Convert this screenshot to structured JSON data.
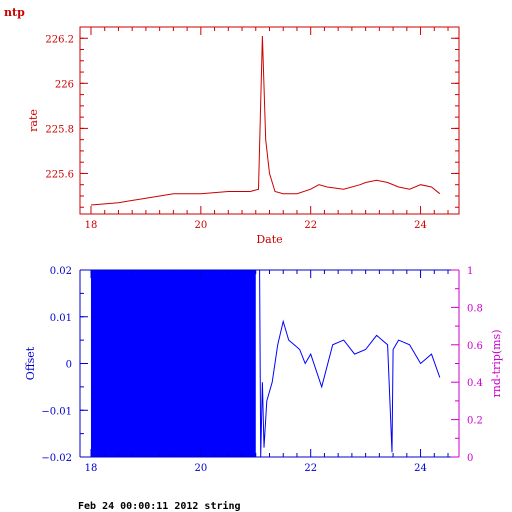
{
  "page_title": "ntp",
  "footer": "Feb 24 00:00:11 2012 string",
  "colors": {
    "top": "#cc0000",
    "bottom_axis": "#0000cc",
    "bottom_data": "#0000ff",
    "right_axis": "#cc00cc"
  },
  "chart_data": [
    {
      "type": "line",
      "title": "",
      "xlabel": "Date",
      "ylabel": "rate",
      "xlim": [
        17.8,
        24.7
      ],
      "ylim": [
        225.42,
        226.25
      ],
      "x_ticks": [
        18,
        20,
        22,
        24
      ],
      "y_ticks": [
        225.6,
        225.8,
        226,
        226.2
      ],
      "x_tick_labels": [
        "18",
        "20",
        "22",
        "24"
      ],
      "y_tick_labels": [
        "225.6",
        "225.8",
        "226",
        "226.2"
      ],
      "grid": false,
      "series": [
        {
          "x": [
            18.0,
            18.5,
            19.0,
            19.5,
            20.0,
            20.5,
            20.9,
            21.05,
            21.12,
            21.18,
            21.25,
            21.35,
            21.5,
            21.75,
            22.0,
            22.15,
            22.3,
            22.6,
            22.9,
            23.0,
            23.2,
            23.4,
            23.6,
            23.8,
            24.0,
            24.2,
            24.35
          ],
          "y": [
            225.46,
            225.47,
            225.49,
            225.51,
            225.51,
            225.52,
            225.52,
            225.53,
            226.21,
            225.75,
            225.6,
            225.52,
            225.51,
            225.51,
            225.53,
            225.55,
            225.54,
            225.53,
            225.55,
            225.56,
            225.57,
            225.56,
            225.54,
            225.53,
            225.55,
            225.54,
            225.51
          ]
        }
      ]
    },
    {
      "type": "line",
      "title": "",
      "xlabel": "",
      "ylabel": "Offset",
      "y2label": "rnd-trip(ms)",
      "xlim": [
        17.8,
        24.7
      ],
      "ylim": [
        -0.02,
        0.02
      ],
      "y2lim": [
        0,
        1
      ],
      "x_ticks": [
        18,
        20,
        22,
        24
      ],
      "y_ticks": [
        -0.02,
        -0.01,
        0,
        0.01,
        0.02
      ],
      "y2_ticks": [
        0,
        0.2,
        0.4,
        0.6,
        0.8,
        1
      ],
      "x_tick_labels": [
        "18",
        "20",
        "22",
        "24"
      ],
      "y_tick_labels": [
        "−0.02",
        "−0.01",
        "0",
        "0.01",
        "0.02"
      ],
      "y2_tick_labels": [
        "0",
        "0.2",
        "0.4",
        "0.6",
        "0.8",
        "1"
      ],
      "grid": false,
      "series": [
        {
          "fill_range": {
            "x": [
              18.0,
              21.0
            ],
            "y": [
              -0.02,
              0.02
            ]
          },
          "x": [
            21.07,
            21.09,
            21.12,
            21.15,
            21.2,
            21.3,
            21.4,
            21.5,
            21.6,
            21.7,
            21.8,
            21.9,
            22.0,
            22.2,
            22.4,
            22.6,
            22.8,
            23.0,
            23.2,
            23.4,
            23.48,
            23.5,
            23.6,
            23.8,
            24.0,
            24.2,
            24.35
          ],
          "y": [
            0.02,
            -0.02,
            -0.004,
            -0.018,
            -0.008,
            -0.004,
            0.004,
            0.009,
            0.005,
            0.004,
            0.003,
            0.0,
            0.002,
            -0.005,
            0.004,
            0.005,
            0.002,
            0.003,
            0.006,
            0.004,
            -0.019,
            0.003,
            0.005,
            0.004,
            0.0,
            0.002,
            -0.003
          ]
        }
      ]
    }
  ]
}
